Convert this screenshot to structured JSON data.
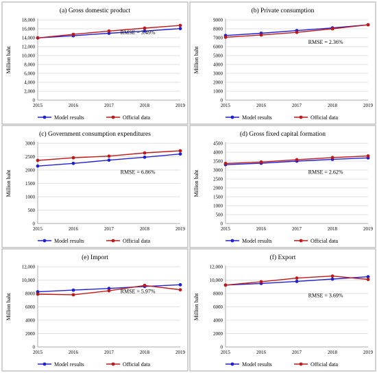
{
  "colors": {
    "model": "#1f1fd6",
    "official": "#c01818",
    "grid": "#d9d9d9",
    "axis": "#999999",
    "border": "#a6a6a6"
  },
  "legend": {
    "model_label": "Model results",
    "official_label": "Official data"
  },
  "chart_data": [
    {
      "type": "line",
      "title": "(a) Gross domestic product",
      "ylabel": "Million baht",
      "annotation": "RMSE = 3.49%",
      "x": [
        "2015",
        "2016",
        "2017",
        "2018",
        "2019"
      ],
      "ylim": [
        0,
        18000
      ],
      "yticks": [
        0,
        2000,
        4000,
        6000,
        8000,
        10000,
        12000,
        14000,
        16000,
        18000
      ],
      "ytick_labels": [
        "0",
        "2,000",
        "4,000",
        "6,000",
        "8,000",
        "10,000",
        "12,000",
        "14,000",
        "16,000",
        "18,000"
      ],
      "grid": true,
      "legend_position": "bottom",
      "series": [
        {
          "name": "Model results",
          "values": [
            13950,
            14450,
            15000,
            15500,
            16050
          ]
        },
        {
          "name": "Official data",
          "values": [
            13950,
            14750,
            15500,
            16150,
            16750
          ]
        }
      ]
    },
    {
      "type": "line",
      "title": "(b) Private consumption",
      "ylabel": "Million baht",
      "annotation": "RMSE = 2.36%",
      "x": [
        "2015",
        "2016",
        "2017",
        "2018",
        "2019"
      ],
      "ylim": [
        0,
        9000
      ],
      "yticks": [
        0,
        1000,
        2000,
        3000,
        4000,
        5000,
        6000,
        7000,
        8000,
        9000
      ],
      "ytick_labels": [
        "0",
        "1000",
        "2000",
        "3000",
        "4000",
        "5000",
        "6000",
        "7000",
        "8000",
        "9000"
      ],
      "grid": true,
      "legend_position": "bottom",
      "series": [
        {
          "name": "Model results",
          "values": [
            7250,
            7500,
            7800,
            8100,
            8450
          ]
        },
        {
          "name": "Official data",
          "values": [
            7050,
            7300,
            7600,
            8000,
            8450
          ]
        }
      ]
    },
    {
      "type": "line",
      "title": "(c) Government consumption expenditures",
      "ylabel": "Million baht",
      "annotation": "RMSE = 6.86%",
      "x": [
        "2015",
        "2016",
        "2017",
        "2018",
        "2019"
      ],
      "ylim": [
        0,
        3000
      ],
      "yticks": [
        0,
        500,
        1000,
        1500,
        2000,
        2500,
        3000
      ],
      "ytick_labels": [
        "0",
        "500",
        "1000",
        "1500",
        "2000",
        "2500",
        "3000"
      ],
      "grid": true,
      "legend_position": "bottom",
      "series": [
        {
          "name": "Model results",
          "values": [
            2150,
            2250,
            2370,
            2480,
            2600
          ]
        },
        {
          "name": "Official data",
          "values": [
            2360,
            2460,
            2520,
            2640,
            2720
          ]
        }
      ]
    },
    {
      "type": "line",
      "title": "(d) Gross fixed capital formation",
      "ylabel": "Million baht",
      "annotation": "RMSE = 2.62%",
      "x": [
        "2015",
        "2016",
        "2017",
        "2018",
        "2019"
      ],
      "ylim": [
        0,
        4500
      ],
      "yticks": [
        0,
        500,
        1000,
        1500,
        2000,
        2500,
        3000,
        3500,
        4000,
        4500
      ],
      "ytick_labels": [
        "0",
        "500",
        "1000",
        "1500",
        "2000",
        "2500",
        "3000",
        "3500",
        "4000",
        "4500"
      ],
      "grid": true,
      "legend_position": "bottom",
      "series": [
        {
          "name": "Model results",
          "values": [
            3300,
            3380,
            3500,
            3600,
            3680
          ]
        },
        {
          "name": "Official data",
          "values": [
            3370,
            3450,
            3580,
            3700,
            3790
          ]
        }
      ]
    },
    {
      "type": "line",
      "title": "(e) Import",
      "ylabel": "Million baht",
      "annotation": "RMSE = 5.97%",
      "x": [
        "2015",
        "2016",
        "2017",
        "2018",
        "2019"
      ],
      "ylim": [
        0,
        12000
      ],
      "yticks": [
        0,
        2000,
        4000,
        6000,
        8000,
        10000,
        12000
      ],
      "ytick_labels": [
        "0",
        "2000",
        "4000",
        "6000",
        "8000",
        "10,000",
        "12,000"
      ],
      "grid": true,
      "legend_position": "bottom",
      "series": [
        {
          "name": "Model results",
          "values": [
            8250,
            8500,
            8750,
            9050,
            9300
          ]
        },
        {
          "name": "Official data",
          "values": [
            7900,
            7800,
            8400,
            9200,
            8550
          ]
        }
      ]
    },
    {
      "type": "line",
      "title": "(f) Export",
      "ylabel": "Million baht",
      "annotation": "RMSE = 3.69%",
      "x": [
        "2015",
        "2016",
        "2017",
        "2018",
        "2019"
      ],
      "ylim": [
        0,
        12000
      ],
      "yticks": [
        0,
        2000,
        4000,
        6000,
        8000,
        10000,
        12000
      ],
      "ytick_labels": [
        "0",
        "2000",
        "4000",
        "6000",
        "8000",
        "10,000",
        "12,000"
      ],
      "grid": true,
      "legend_position": "bottom",
      "series": [
        {
          "name": "Model results",
          "values": [
            9250,
            9500,
            9800,
            10150,
            10500
          ]
        },
        {
          "name": "Official data",
          "values": [
            9250,
            9750,
            10300,
            10600,
            10100
          ]
        }
      ]
    }
  ]
}
